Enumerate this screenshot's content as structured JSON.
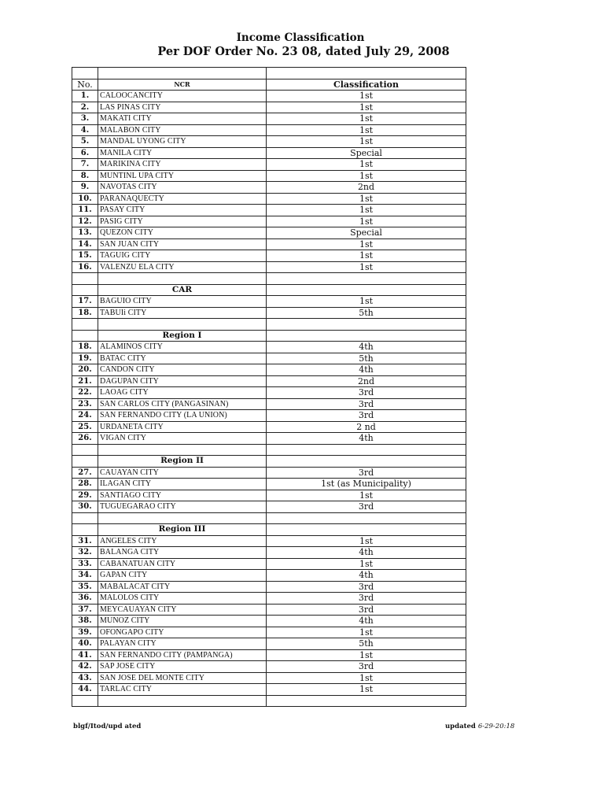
{
  "title": "Income Classification",
  "subtitle": "Per DOF Order No. 23 08, dated July 29, 2008",
  "header": {
    "no": "No.",
    "region": "NCR",
    "classification": "Classification"
  },
  "rows": [
    {
      "no": "1.",
      "name": "CALOOCANCITY",
      "cls": "1st"
    },
    {
      "no": "2.",
      "name": "LAS PINAS CITY",
      "cls": "1st"
    },
    {
      "no": "3.",
      "name": "MAKATI CITY",
      "cls": "1st"
    },
    {
      "no": "4.",
      "name": "MALABON CITY",
      "cls": "1st"
    },
    {
      "no": "5.",
      "name": "MANDAL UYONG CITY",
      "cls": "1st"
    },
    {
      "no": "6.",
      "name": "MANILA CITY",
      "cls": "Special"
    },
    {
      "no": "7.",
      "name": "MARIKINA CITY",
      "cls": "1st"
    },
    {
      "no": "8.",
      "name": "MUNTINL UPA CITY",
      "cls": "1st"
    },
    {
      "no": "9.",
      "name": "NAVOTAS CITY",
      "cls": "2nd"
    },
    {
      "no": "10.",
      "name": "PARANAQUECTY",
      "cls": "1st"
    },
    {
      "no": "11.",
      "name": "PASAY CITY",
      "cls": "1st"
    },
    {
      "no": "12.",
      "name": "PASIG CITY",
      "cls": "1st"
    },
    {
      "no": "13.",
      "name": "QUEZON CITY",
      "cls": "Special"
    },
    {
      "no": "14.",
      "name": "SAN JUAN CITY",
      "cls": "1st"
    },
    {
      "no": "15.",
      "name": "TAGUIG CITY",
      "cls": "1st"
    },
    {
      "no": "16.",
      "name": "VALENZU ELA CITY",
      "cls": "1st"
    },
    {
      "blank": true
    },
    {
      "heading": "CAR"
    },
    {
      "no": "17.",
      "name": "BAGUIO CITY",
      "cls": "1st"
    },
    {
      "no": "18.",
      "name": "TABUIi CITY",
      "cls": "5th"
    },
    {
      "blank": true
    },
    {
      "heading": "Region I"
    },
    {
      "no": "18.",
      "name": "ALAMINOS CITY",
      "cls": "4th"
    },
    {
      "no": "19.",
      "name": "BATAC CITY",
      "cls": "5th"
    },
    {
      "no": "20.",
      "name": "CANDON CITY",
      "cls": "4th"
    },
    {
      "no": "21.",
      "name": "DAGUPAN CITY",
      "cls": "2nd"
    },
    {
      "no": "22.",
      "name": "LAOAG CITY",
      "cls": "3rd"
    },
    {
      "no": "23.",
      "name": "SAN CARLOS  CITY (PANGASINAN)",
      "cls": "3rd"
    },
    {
      "no": "24.",
      "name": "SAN FERNANDO  CITY (LA UNION)",
      "cls": "3rd"
    },
    {
      "no": "25.",
      "name": "URDANETA CITY",
      "cls": "2 nd"
    },
    {
      "no": "26.",
      "name": "VIGAN CITY",
      "cls": "4th"
    },
    {
      "blank": true
    },
    {
      "heading": "Region II"
    },
    {
      "no": "27.",
      "name": "CAUAYAN CITY",
      "cls": "3rd"
    },
    {
      "no": "28.",
      "name": "ILAGAN CITY",
      "cls": "1st (as Municipality)"
    },
    {
      "no": "29.",
      "name": "SANTIAGO CITY",
      "cls": "1st"
    },
    {
      "no": "30.",
      "name": "TUGUEGARAO CITY",
      "cls": "3rd"
    },
    {
      "blank": true
    },
    {
      "heading": "Region III"
    },
    {
      "no": "31.",
      "name": "ANGELES CITY",
      "cls": "1st"
    },
    {
      "no": "32.",
      "name": "BALANGA CITY",
      "cls": "4th"
    },
    {
      "no": "33.",
      "name": "CABANATUAN CITY",
      "cls": "1st"
    },
    {
      "no": "34.",
      "name": "GAPAN CITY",
      "cls": "4th"
    },
    {
      "no": "35.",
      "name": "MABALACAT CITY",
      "cls": "3rd"
    },
    {
      "no": "36.",
      "name": "MALOLOS CITY",
      "cls": "3rd"
    },
    {
      "no": "37.",
      "name": "MEYCAUAYAN CITY",
      "cls": "3rd"
    },
    {
      "no": "38.",
      "name": "MUNOZ CITY",
      "cls": "4th"
    },
    {
      "no": "39.",
      "name": "OFONGAPO CITY",
      "cls": "1st"
    },
    {
      "no": "40.",
      "name": "PALAYAN CITY",
      "cls": "5th"
    },
    {
      "no": "41.",
      "name": "SAN FERNANDO CITY (PAMPANGA)",
      "cls": "1st"
    },
    {
      "no": "42.",
      "name": "SAP JOSE CITY",
      "cls": "3rd"
    },
    {
      "no": "43.",
      "name": "SAN JOSE DEL MONTE CITY",
      "cls": "1st"
    },
    {
      "no": "44.",
      "name": "TARLAC CITY",
      "cls": "1st"
    },
    {
      "blank": true
    }
  ],
  "footer": {
    "left": "blgf/Itod/upd ated",
    "right_label": "updated",
    "right_date": "6-29-20:18"
  }
}
